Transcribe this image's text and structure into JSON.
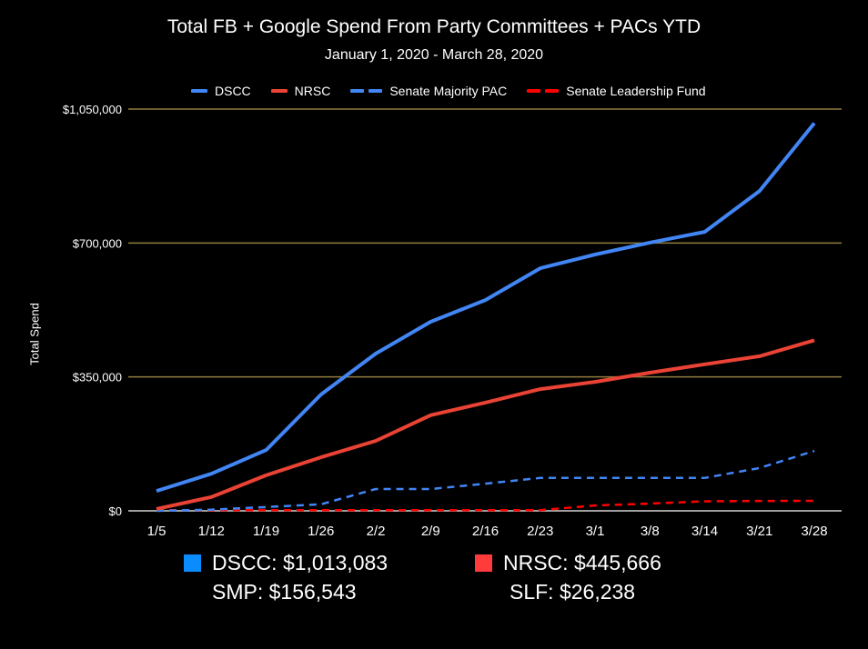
{
  "chart_data": {
    "type": "line",
    "title": "Total FB + Google Spend From Party Committees + PACs YTD",
    "subtitle": "January 1, 2020 - March 28, 2020",
    "xlabel": "",
    "ylabel": "Total Spend",
    "ylim": [
      0,
      1050000
    ],
    "yticks": [
      0,
      350000,
      700000,
      1050000
    ],
    "ytick_labels": [
      "$0",
      "$350,000",
      "$700,000",
      "$1,050,000"
    ],
    "grid": true,
    "legend_position": "top",
    "categories": [
      "1/5",
      "1/12",
      "1/19",
      "1/26",
      "2/2",
      "2/9",
      "2/16",
      "2/23",
      "3/1",
      "3/8",
      "3/14",
      "3/21",
      "3/28"
    ],
    "series": [
      {
        "name": "DSCC",
        "color": "#4285f4",
        "dashed": false,
        "values": [
          52000,
          97000,
          159000,
          304000,
          411000,
          494000,
          551000,
          634000,
          670000,
          701000,
          729000,
          836000,
          1013083
        ]
      },
      {
        "name": "NRSC",
        "color": "#ea4335",
        "dashed": false,
        "values": [
          5000,
          36000,
          93000,
          140000,
          183000,
          250000,
          283000,
          318000,
          337000,
          361000,
          383000,
          404000,
          445666
        ]
      },
      {
        "name": "Senate Majority PAC",
        "color": "#4285f4",
        "dashed": true,
        "values": [
          0,
          3000,
          10000,
          17000,
          57000,
          57000,
          71000,
          86000,
          86000,
          86000,
          86000,
          112000,
          156543
        ]
      },
      {
        "name": "Senate Leadership Fund",
        "color": "#ff0000",
        "dashed": true,
        "values": [
          2000,
          2000,
          2000,
          2000,
          2000,
          2000,
          2000,
          2000,
          14000,
          19000,
          25000,
          26000,
          26238
        ]
      }
    ]
  },
  "colors": {
    "gridline": "#8f7d3f",
    "baseline": "#9e9e9e",
    "dscc_box": "#0a8cff",
    "nrsc_box": "#ff3b3b"
  },
  "annotations": {
    "dscc": "DSCC: $1,013,083",
    "smp": "SMP: $156,543",
    "nrsc": "NRSC: $445,666",
    "slf": "SLF: $26,238"
  }
}
